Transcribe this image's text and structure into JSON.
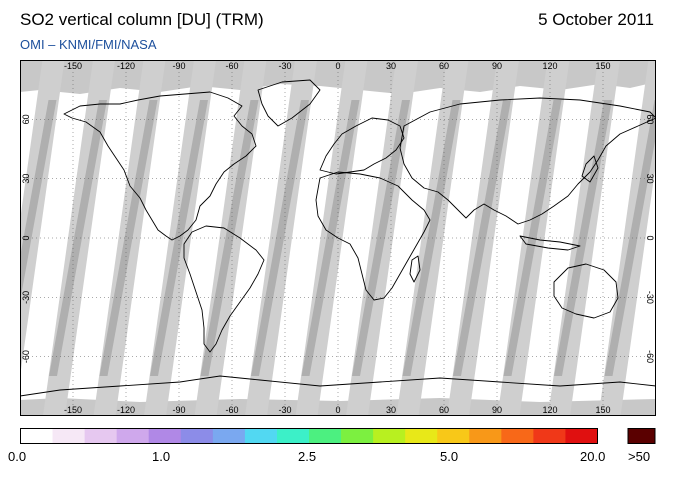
{
  "header": {
    "title": "SO2 vertical column [DU] (TRM)",
    "date": "5 October 2011",
    "credit": "OMI  –  KNMI/FMI/NASA"
  },
  "map": {
    "projection": "equirectangular",
    "extent": {
      "lon": [
        -180,
        180
      ],
      "lat": [
        -90,
        90
      ]
    },
    "lon_ticks": [
      "-150",
      "-120",
      "-90",
      "-60",
      "-30",
      "0",
      "30",
      "60",
      "90",
      "120",
      "150"
    ],
    "lat_ticks": [
      "60",
      "30",
      "0",
      "-30",
      "-60"
    ],
    "grid": "dotted",
    "colors": {
      "background": "#ffffff",
      "no_data": "#c8c8c8",
      "orbit_gap_dark": "#a9a9a9",
      "coastline": "#000000"
    }
  },
  "colorbar": {
    "labels": [
      "0.0",
      "1.0",
      "2.5",
      "5.0",
      "20.0"
    ],
    "overflow_label": ">50",
    "overflow_color": "#5a0000",
    "colors": [
      "#ffffff",
      "#f6e8f6",
      "#e6c8f0",
      "#cfa8ec",
      "#b088e6",
      "#8c8ce8",
      "#7aa8f0",
      "#52d8f2",
      "#3cf0c8",
      "#4cf080",
      "#7cf040",
      "#b8f020",
      "#e8e818",
      "#f8c818",
      "#f89818",
      "#f86818",
      "#f03818",
      "#e01010"
    ]
  }
}
